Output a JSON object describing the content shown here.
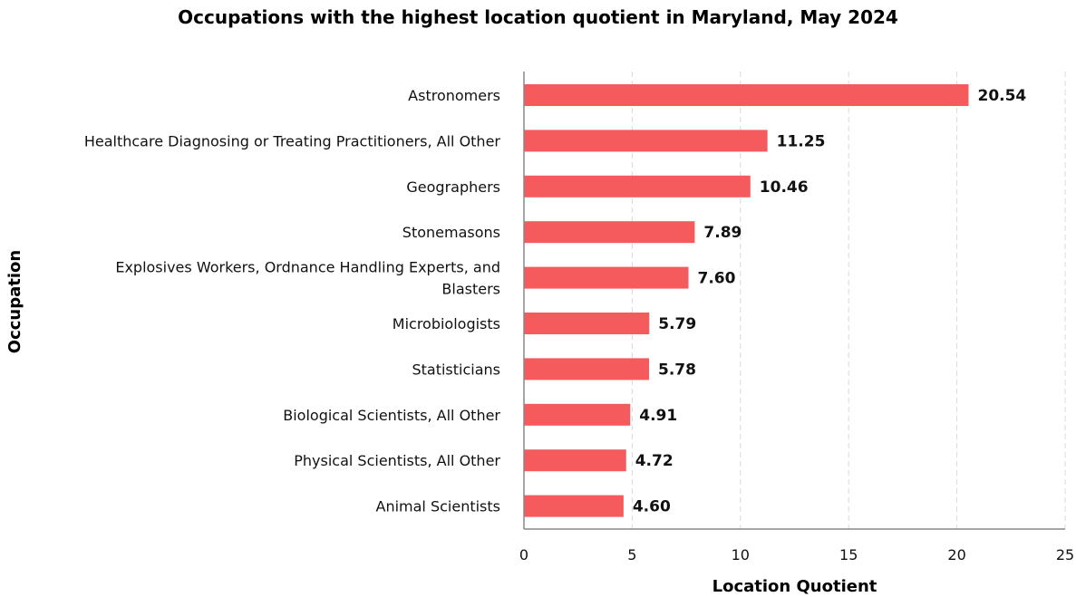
{
  "chart_data": {
    "type": "bar",
    "orientation": "horizontal",
    "title": "Occupations with the highest location quotient in Maryland, May 2024",
    "xlabel": "Location Quotient",
    "ylabel": "Occupation",
    "categories": [
      "Astronomers",
      "Healthcare Diagnosing or Treating Practitioners, All Other",
      "Geographers",
      "Stonemasons",
      "Explosives Workers, Ordnance Handling Experts, and Blasters",
      "Microbiologists",
      "Statisticians",
      "Biological Scientists, All Other",
      "Physical Scientists, All Other",
      "Animal Scientists"
    ],
    "category_lines": [
      [
        "Astronomers"
      ],
      [
        "Healthcare Diagnosing or Treating Practitioners, All Other"
      ],
      [
        "Geographers"
      ],
      [
        "Stonemasons"
      ],
      [
        "Explosives Workers, Ordnance Handling Experts, and",
        "Blasters"
      ],
      [
        "Microbiologists"
      ],
      [
        "Statisticians"
      ],
      [
        "Biological Scientists, All Other"
      ],
      [
        "Physical Scientists, All Other"
      ],
      [
        "Animal Scientists"
      ]
    ],
    "values": [
      20.54,
      11.25,
      10.46,
      7.89,
      7.6,
      5.79,
      5.78,
      4.91,
      4.72,
      4.6
    ],
    "value_labels": [
      "20.54",
      "11.25",
      "10.46",
      "7.89",
      "7.60",
      "5.79",
      "5.78",
      "4.91",
      "4.72",
      "4.60"
    ],
    "xlim": [
      0,
      25
    ],
    "xticks": [
      0,
      5,
      10,
      15,
      20,
      25
    ],
    "grid": "vertical dashed",
    "bar_color": "#f55a5c",
    "grid_color": "#d9d9d9",
    "axis_color": "#888888"
  }
}
